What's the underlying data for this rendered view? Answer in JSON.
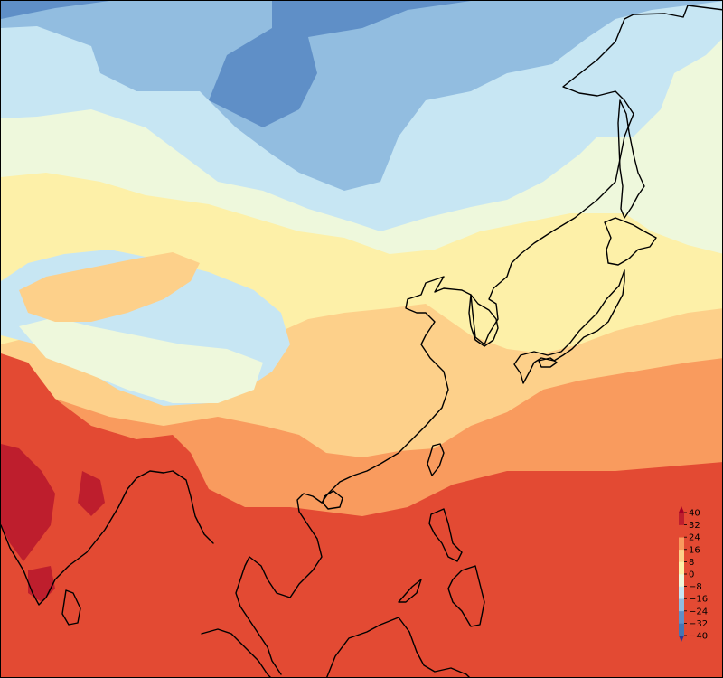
{
  "map": {
    "region": "East Asia",
    "color_scale": [
      {
        "range": "< -40",
        "color": "#313695"
      },
      {
        "range": "-40 to -32",
        "color": "#4575b4"
      },
      {
        "range": "-32 to -24",
        "color": "#5f8fc7"
      },
      {
        "range": "-24 to -16",
        "color": "#92bde0"
      },
      {
        "range": "-16 to -8",
        "color": "#c7e6f3"
      },
      {
        "range": "-8 to 0",
        "color": "#eef8dc"
      },
      {
        "range": "0 to 8",
        "color": "#fdf0a8"
      },
      {
        "range": "8 to 16",
        "color": "#fdd08a"
      },
      {
        "range": "16 to 24",
        "color": "#f99b5e"
      },
      {
        "range": "24 to 32",
        "color": "#e34a33"
      },
      {
        "range": "32 to 40",
        "color": "#be1e2d"
      },
      {
        "range": "> 40",
        "color": "#a50026"
      }
    ],
    "coastline_color": "#000000"
  },
  "colorbar": {
    "ticks": [
      "40",
      "32",
      "24",
      "16",
      "8",
      "0",
      "−8",
      "−16",
      "−24",
      "−32",
      "−40"
    ],
    "extend": "both"
  }
}
